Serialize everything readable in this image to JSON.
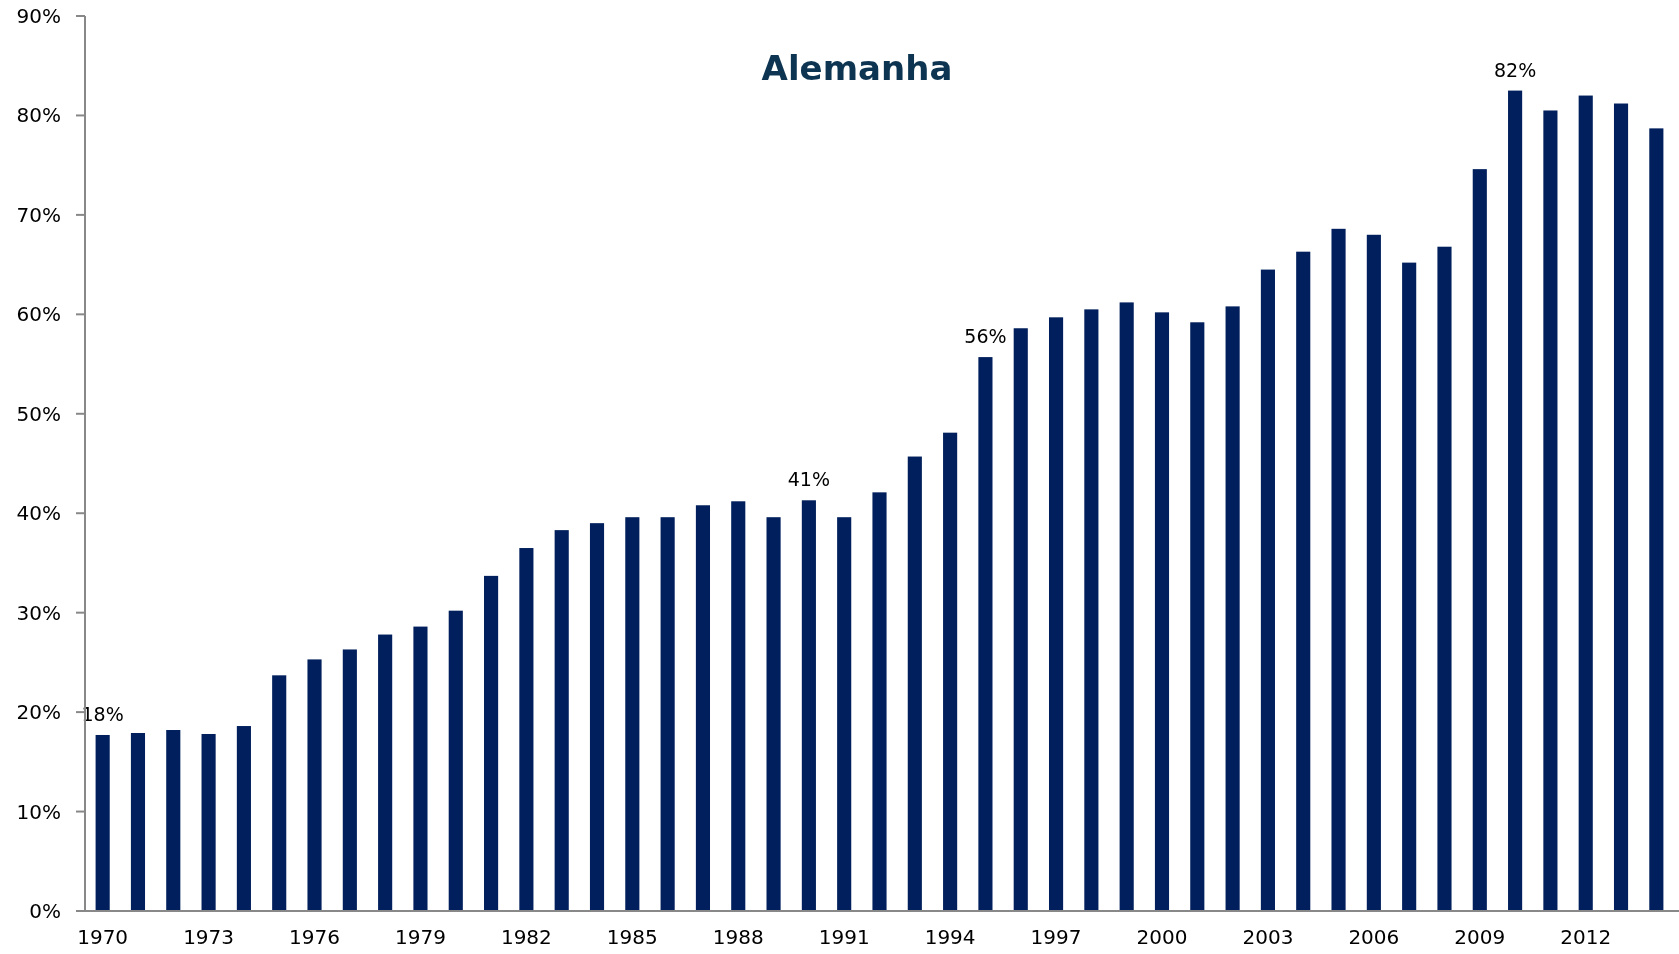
{
  "chart_data": {
    "type": "bar",
    "title": "Alemanha",
    "categories": [
      "1970",
      null,
      null,
      "1973",
      null,
      null,
      "1976",
      null,
      null,
      "1979",
      null,
      null,
      "1982",
      null,
      null,
      "1985",
      null,
      null,
      "1988",
      null,
      null,
      "1991",
      null,
      null,
      "1994",
      null,
      null,
      "1997",
      null,
      null,
      "2000",
      null,
      null,
      "2003",
      null,
      null,
      "2006",
      null,
      null,
      "2009",
      null,
      null,
      "2012",
      null,
      null
    ],
    "values": [
      17.7,
      17.9,
      18.2,
      17.8,
      18.6,
      23.7,
      25.3,
      26.3,
      27.8,
      28.6,
      30.2,
      33.7,
      36.5,
      38.3,
      39.0,
      39.6,
      39.6,
      40.8,
      41.2,
      39.6,
      41.3,
      39.6,
      42.1,
      45.7,
      48.1,
      55.7,
      58.6,
      59.7,
      60.5,
      61.2,
      60.2,
      59.2,
      60.8,
      64.5,
      66.3,
      68.6,
      68.0,
      65.2,
      66.8,
      74.6,
      82.5,
      80.5,
      82.0,
      81.2,
      78.7
    ],
    "value_labels": [
      "18%",
      null,
      null,
      null,
      null,
      null,
      null,
      null,
      null,
      null,
      null,
      null,
      null,
      null,
      null,
      null,
      null,
      null,
      null,
      null,
      "41%",
      null,
      null,
      null,
      null,
      "56%",
      null,
      null,
      null,
      null,
      null,
      null,
      null,
      null,
      null,
      null,
      null,
      null,
      null,
      null,
      "82%",
      null,
      null,
      null,
      null
    ],
    "color": "#001f5c",
    "ylim": [
      0,
      90
    ],
    "yticks": [
      {
        "value": 0,
        "label": "0%"
      },
      {
        "value": 10,
        "label": "10%"
      },
      {
        "value": 20,
        "label": "20%"
      },
      {
        "value": 30,
        "label": "30%"
      },
      {
        "value": 40,
        "label": "40%"
      },
      {
        "value": 50,
        "label": "50%"
      },
      {
        "value": 60,
        "label": "60%"
      },
      {
        "value": 70,
        "label": "70%"
      },
      {
        "value": 80,
        "label": "80%"
      },
      {
        "value": 90,
        "label": "90%"
      }
    ],
    "grid": false
  }
}
